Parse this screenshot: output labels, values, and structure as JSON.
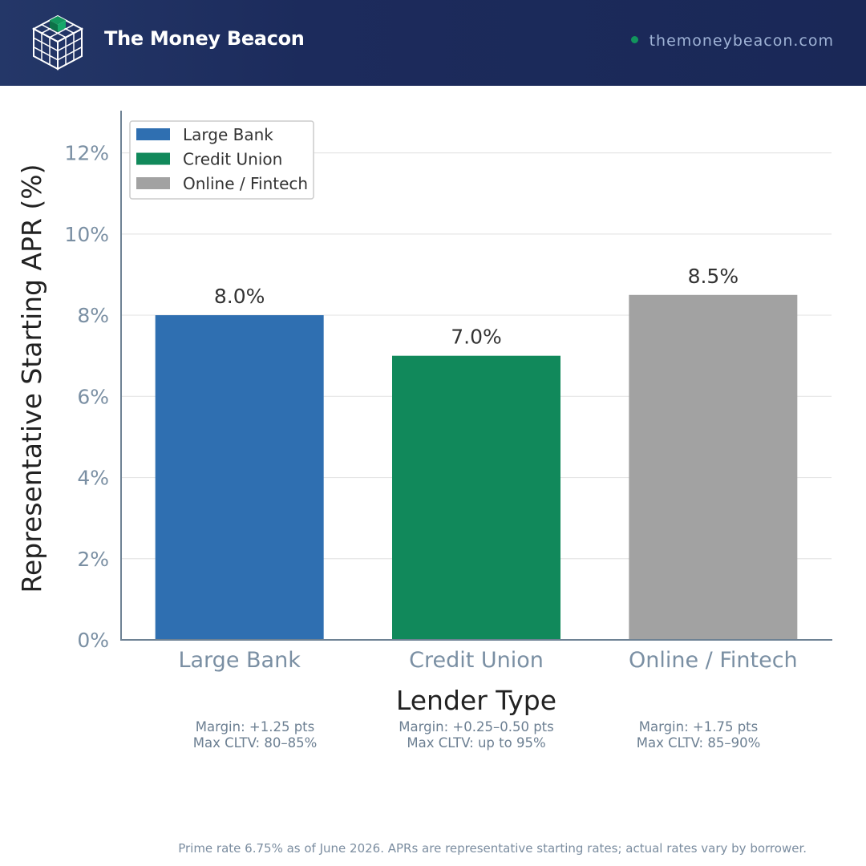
{
  "header": {
    "brand": "The Money Beacon",
    "url": "themoneybeacon.com",
    "logo_icon": "cube-grid-icon",
    "url_dot_color": "#12955d"
  },
  "chart_data": {
    "type": "bar",
    "categories": [
      "Large Bank",
      "Credit Union",
      "Online / Fintech"
    ],
    "values": [
      8.0,
      7.0,
      8.5
    ],
    "data_labels": [
      "8.0%",
      "7.0%",
      "8.5%"
    ],
    "colors": [
      "#2f6fb1",
      "#11895b",
      "#a2a2a2"
    ],
    "xlabel": "Lender Type",
    "ylabel": "Representative Starting APR (%)",
    "ylim": [
      0,
      13
    ],
    "yticks": [
      0,
      2,
      4,
      6,
      8,
      10,
      12
    ],
    "ytick_labels": [
      "0%",
      "2%",
      "4%",
      "6%",
      "8%",
      "10%",
      "12%"
    ],
    "grid": true,
    "legend": {
      "placement": "top-left",
      "entries": [
        "Large Bank",
        "Credit Union",
        "Online / Fintech"
      ]
    }
  },
  "notes": [
    {
      "margin": "Margin: +1.25 pts",
      "cltv": "Max CLTV: 80–85%"
    },
    {
      "margin": "Margin: +0.25–0.50 pts",
      "cltv": "Max CLTV: up to 95%"
    },
    {
      "margin": "Margin: +1.75 pts",
      "cltv": "Max CLTV: 85–90%"
    }
  ],
  "footer": "Prime rate 6.75% as of June 2026. APRs are representative starting rates; actual rates vary by borrower."
}
